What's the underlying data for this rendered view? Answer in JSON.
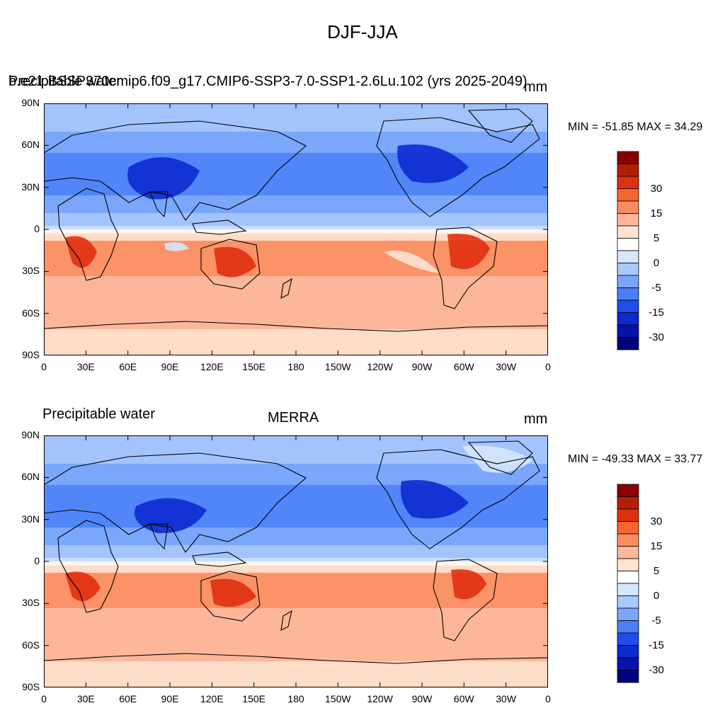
{
  "title": "DJF-JJA",
  "panels": [
    {
      "left_label_a": "Precipitable water",
      "left_label_b": "b.e21.BSSP370cmip6.f09_g17.CMIP6-SSP3-7.0-SSP1-2.6Lu.102 (yrs 2025-2049)",
      "center_label": "",
      "units": "mm",
      "minmax": "MIN = -51.85 MAX =  34.29"
    },
    {
      "left_label_a": "Precipitable water",
      "left_label_b": "",
      "center_label": "MERRA",
      "units": "mm",
      "minmax": "MIN = -49.33 MAX =  33.77"
    }
  ],
  "lat_labels": [
    "90N",
    "60N",
    "30N",
    "0",
    "30S",
    "60S",
    "90S"
  ],
  "lon_labels": [
    "0",
    "30E",
    "60E",
    "90E",
    "120E",
    "150E",
    "180",
    "150W",
    "120W",
    "90W",
    "60W",
    "30W",
    "0"
  ],
  "colorbar": {
    "labels": [
      "30",
      "15",
      "5",
      "0",
      "-5",
      "-15",
      "-30"
    ],
    "colors": [
      "#8b0000",
      "#b22000",
      "#e03010",
      "#f7652e",
      "#fb8c5e",
      "#fcb79a",
      "#fde3d0",
      "#ffffff",
      "#d6e6fb",
      "#a9c8fb",
      "#7aa6fa",
      "#4a7ff7",
      "#1f4dee",
      "#0d2ad0",
      "#0514a8",
      "#00037a"
    ]
  },
  "map_colors": {
    "ocean_north": "#7aa6fa",
    "ocean_south": "#fcb79a",
    "antarctica": "#fde3d0",
    "arctic": "#a9c8fb",
    "land_north": "#4a7ff7",
    "land_north_strong": "#0d2ad0",
    "land_south": "#f7652e",
    "land_south_strong": "#e03010"
  }
}
